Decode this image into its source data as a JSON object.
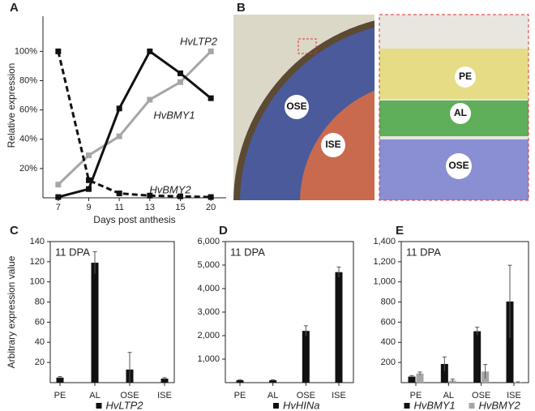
{
  "chart_data": [
    {
      "type": "line",
      "panel": "A",
      "x_label": "Days post anthesis",
      "y_label": "Relative expression",
      "categories": [
        "7",
        "9",
        "11",
        "13",
        "15",
        "20"
      ],
      "ylim": [
        0,
        124
      ],
      "yticks": [
        {
          "value": 20,
          "label": "20%"
        },
        {
          "value": 40,
          "label": "40%"
        },
        {
          "value": 60,
          "label": "60%"
        },
        {
          "value": 80,
          "label": "80%"
        },
        {
          "value": 100,
          "label": "100%"
        }
      ],
      "series": [
        {
          "name": "HvLTP2",
          "color": "#a6a6a6",
          "dash": false,
          "values": [
            9,
            29,
            42,
            67,
            79,
            100
          ]
        },
        {
          "name": "HvBMY1",
          "color": "#111111",
          "dash": false,
          "values": [
            0.5,
            6,
            61,
            100,
            85,
            68
          ]
        },
        {
          "name": "HvBMY2",
          "color": "#111111",
          "dash": true,
          "values": [
            100,
            12,
            3,
            1.5,
            1,
            0.5
          ]
        }
      ]
    },
    {
      "type": "bar",
      "panel": "C",
      "annotation": "11 DPA",
      "y_label": "Arbitrary expression value",
      "frame": true,
      "categories": [
        "PE",
        "AL",
        "OSE",
        "ISE"
      ],
      "ylim": [
        0,
        140
      ],
      "yticks": [
        20,
        40,
        60,
        80,
        100,
        120,
        140
      ],
      "series": [
        {
          "name": "HvLTP2",
          "color": "#111111",
          "values": [
            5,
            119,
            13,
            4
          ],
          "errors": [
            1,
            11,
            17,
            1
          ]
        }
      ]
    },
    {
      "type": "bar",
      "panel": "D",
      "annotation": "11 DPA",
      "frame": true,
      "categories": [
        "PE",
        "AL",
        "OSE",
        "ISE"
      ],
      "ylim": [
        0,
        6000
      ],
      "yticks": [
        {
          "value": 1000,
          "label": "1,000"
        },
        {
          "value": 2000,
          "label": "2,000"
        },
        {
          "value": 3000,
          "label": "3,000"
        },
        {
          "value": 4000,
          "label": "4,000"
        },
        {
          "value": 5000,
          "label": "5,000"
        },
        {
          "value": 6000,
          "label": "6,000"
        }
      ],
      "series": [
        {
          "name": "HvHINa",
          "color": "#111111",
          "values": [
            100,
            100,
            2200,
            4700
          ],
          "errors": [
            20,
            20,
            220,
            220
          ]
        }
      ]
    },
    {
      "type": "bar",
      "panel": "E",
      "annotation": "11 DPA",
      "frame": true,
      "categories": [
        "PE",
        "AL",
        "OSE",
        "ISE"
      ],
      "ylim": [
        0,
        1400
      ],
      "yticks": [
        200,
        400,
        600,
        800,
        {
          "value": 1000,
          "label": "1,000"
        },
        {
          "value": 1200,
          "label": "1,200"
        },
        {
          "value": 1400,
          "label": "1,400"
        }
      ],
      "series": [
        {
          "name": "HvBMY1",
          "color": "#111111",
          "values": [
            60,
            185,
            510,
            805
          ],
          "errors": [
            10,
            70,
            40,
            360
          ]
        },
        {
          "name": "HvBMY2",
          "color": "#a6a6a6",
          "values": [
            90,
            20,
            110,
            5
          ],
          "errors": [
            15,
            15,
            70,
            3
          ]
        }
      ]
    }
  ],
  "image_panel": {
    "panel": "B",
    "labels": [
      "OSE",
      "ISE",
      "PE",
      "AL",
      "OSE"
    ]
  }
}
